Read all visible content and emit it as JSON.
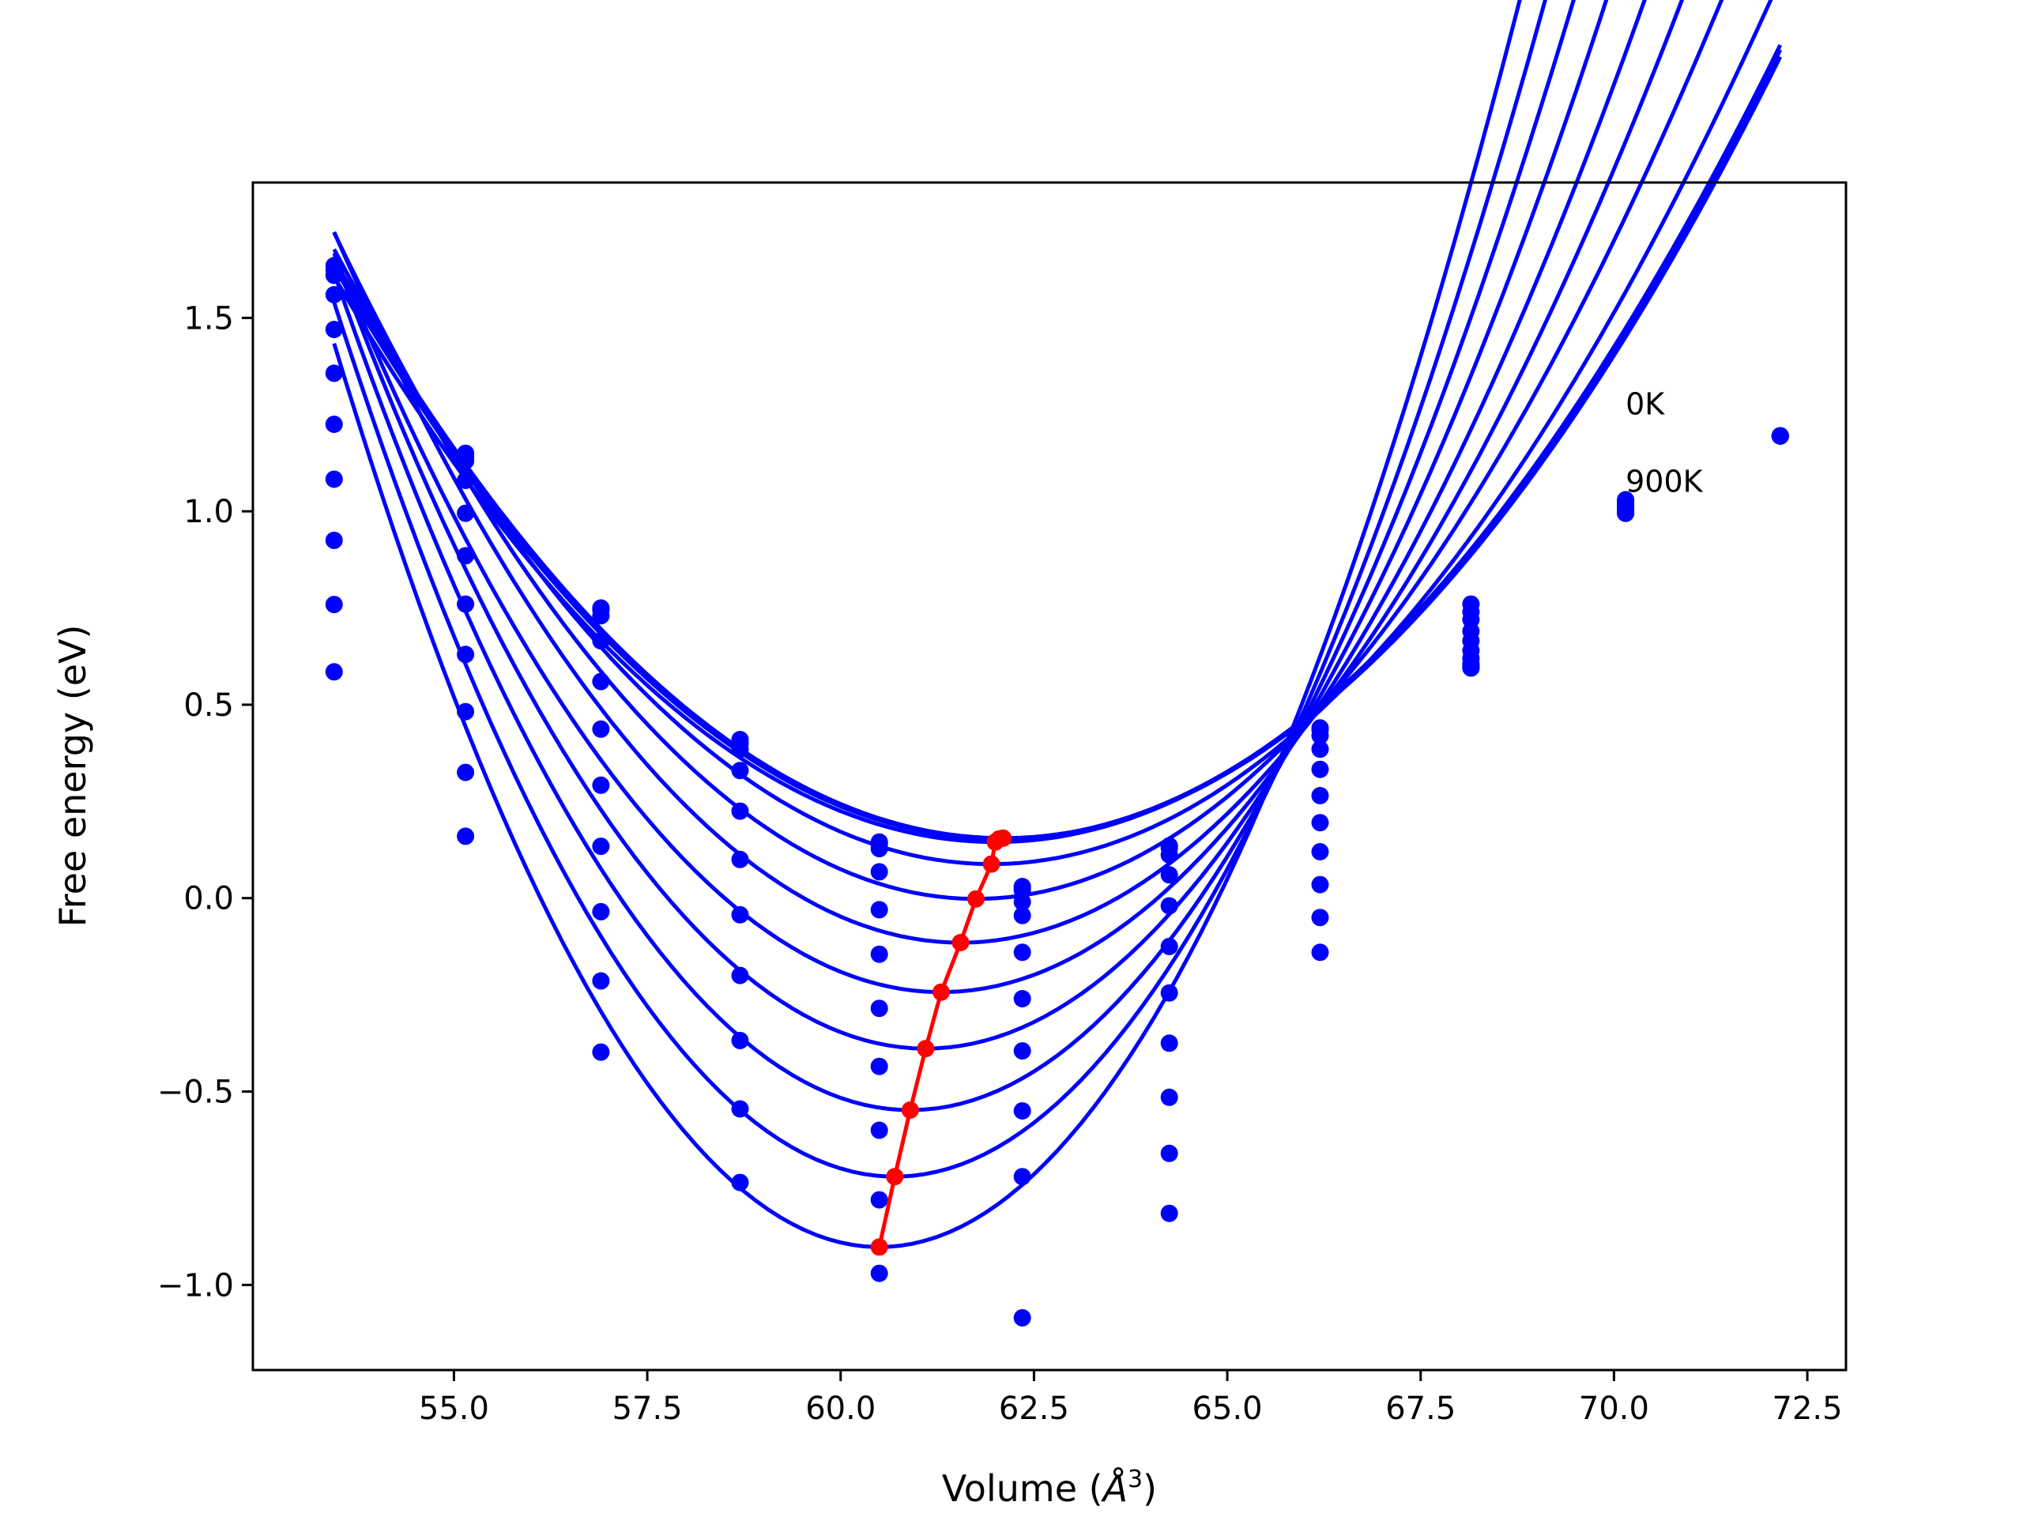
{
  "chart_data": {
    "type": "line",
    "xlabel": "Volume (",
    "xlabel_sym": "Å",
    "xlabel_exp": "3",
    "xlabel_end": ")",
    "ylabel": "Free energy (eV)",
    "xlim": [
      52.4,
      73.0
    ],
    "ylim": [
      -1.22,
      1.85
    ],
    "x_ticks": [
      55.0,
      57.5,
      60.0,
      62.5,
      65.0,
      67.5,
      70.0,
      72.5
    ],
    "x_tick_labels": [
      "55.0",
      "57.5",
      "60.0",
      "62.5",
      "65.0",
      "67.5",
      "70.0",
      "72.5"
    ],
    "y_ticks": [
      -1.0,
      -0.5,
      0.0,
      0.5,
      1.0,
      1.5
    ],
    "y_tick_labels": [
      "−1.0",
      "−0.5",
      "0.0",
      "0.5",
      "1.0",
      "1.5"
    ],
    "grid": false,
    "annotations": [
      {
        "text": "0K",
        "x": 70.15,
        "y": 1.25
      },
      {
        "text": "900K",
        "x": 70.15,
        "y": 1.05
      }
    ],
    "colors": {
      "curves": "#0000ff",
      "points": "#0000ff",
      "minima": "#ff0000"
    },
    "volumes": [
      53.45,
      55.15,
      56.9,
      58.7,
      60.5,
      62.35,
      64.25,
      66.2,
      68.15,
      70.15,
      72.15
    ],
    "curve_range": [
      53.45,
      72.15
    ],
    "series": [
      {
        "v0": 62.1,
        "e0": 0.155,
        "b": 0.02,
        "points": [
          1.635,
          1.15,
          0.75,
          0.41,
          0.145,
          0.03,
          0.135,
          0.44,
          0.76,
          1.03,
          1.195
        ]
      },
      {
        "v0": 62.05,
        "e0": 0.153,
        "b": 0.02,
        "points": [
          1.625,
          1.14,
          0.745,
          0.4,
          0.14,
          0.025,
          0.13,
          0.435,
          0.74,
          1.025,
          1.195
        ]
      },
      {
        "v0": 62.0,
        "e0": 0.145,
        "b": 0.02,
        "points": [
          1.61,
          1.13,
          0.73,
          0.385,
          0.128,
          0.02,
          0.112,
          0.42,
          0.72,
          1.02,
          1.195
        ]
      },
      {
        "v0": 61.95,
        "e0": 0.088,
        "b": 0.022,
        "points": [
          1.56,
          1.08,
          0.665,
          0.33,
          0.068,
          -0.01,
          0.06,
          0.385,
          0.69,
          1.015,
          1.195
        ]
      },
      {
        "v0": 61.75,
        "e0": -0.002,
        "b": 0.025,
        "points": [
          1.47,
          0.995,
          0.56,
          0.225,
          -0.03,
          -0.045,
          -0.02,
          0.333,
          0.665,
          1.01,
          1.195
        ]
      },
      {
        "v0": 61.55,
        "e0": -0.115,
        "b": 0.028,
        "points": [
          1.357,
          0.885,
          0.437,
          0.1,
          -0.145,
          -0.14,
          -0.125,
          0.265,
          0.64,
          1.005,
          1.195
        ]
      },
      {
        "v0": 61.3,
        "e0": -0.243,
        "b": 0.031,
        "points": [
          1.225,
          0.76,
          0.292,
          -0.043,
          -0.285,
          -0.26,
          -0.245,
          0.195,
          0.62,
          1.0,
          1.195
        ]
      },
      {
        "v0": 61.1,
        "e0": -0.389,
        "b": 0.035,
        "points": [
          1.083,
          0.63,
          0.134,
          -0.2,
          -0.435,
          -0.395,
          -0.375,
          0.12,
          0.605,
          0.995,
          1.195
        ]
      },
      {
        "v0": 60.9,
        "e0": -0.548,
        "b": 0.039,
        "points": [
          0.925,
          0.482,
          -0.035,
          -0.368,
          -0.6,
          -0.55,
          -0.515,
          0.035,
          0.6,
          0.995,
          1.195
        ]
      },
      {
        "v0": 60.7,
        "e0": -0.72,
        "b": 0.043,
        "points": [
          0.759,
          0.325,
          -0.214,
          -0.545,
          -0.78,
          -0.72,
          -0.66,
          -0.05,
          0.595,
          0.995,
          1.195
        ]
      },
      {
        "v0": 60.5,
        "e0": -0.902,
        "b": 0.047,
        "points": [
          0.585,
          0.16,
          -0.398,
          -0.735,
          -0.97,
          -1.085,
          -0.815,
          -0.14,
          0.595,
          0.995,
          1.195
        ]
      }
    ],
    "minima": {
      "x": [
        60.5,
        60.7,
        60.9,
        61.1,
        61.3,
        61.55,
        61.75,
        61.95,
        62.0,
        62.05,
        62.1
      ],
      "y": [
        -0.902,
        -0.72,
        -0.548,
        -0.389,
        -0.243,
        -0.115,
        -0.002,
        0.088,
        0.145,
        0.153,
        0.155
      ]
    }
  }
}
